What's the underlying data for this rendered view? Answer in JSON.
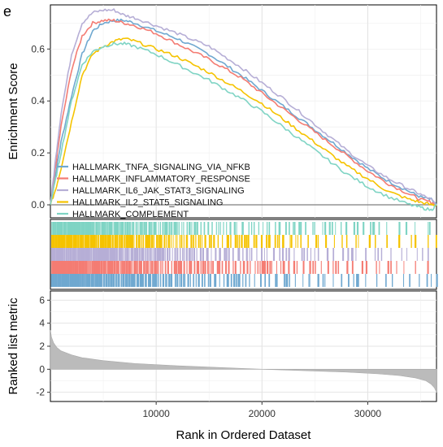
{
  "panel_label": "e",
  "chart_data": {
    "type": "line",
    "x_total": 36500,
    "xlabel": "Rank in Ordered Dataset",
    "xticks": [
      10000,
      20000,
      30000
    ],
    "xtick_labels": [
      "10000",
      "20000",
      "30000"
    ],
    "enrichment": {
      "ylabel": "Enrichment Score",
      "ylim": [
        -0.05,
        0.77
      ],
      "yticks": [
        0.0,
        0.2,
        0.4,
        0.6
      ],
      "ytick_labels": [
        "0.0",
        "0.2",
        "0.4",
        "0.6"
      ],
      "grid": true,
      "legend_position": "lower-left",
      "series": [
        {
          "name": "HALLMARK_TNFA_SIGNALING_VIA_NFKB",
          "color": "#6fa8d0",
          "x": [
            0,
            500,
            1000,
            2000,
            3000,
            4000,
            5000,
            6000,
            7000,
            8000,
            10000,
            12000,
            15000,
            18000,
            20000,
            22000,
            25000,
            28000,
            30000,
            32000,
            34000,
            35000,
            36000,
            36500
          ],
          "y": [
            0,
            0.12,
            0.24,
            0.42,
            0.58,
            0.67,
            0.7,
            0.71,
            0.71,
            0.7,
            0.67,
            0.64,
            0.58,
            0.5,
            0.44,
            0.38,
            0.29,
            0.2,
            0.14,
            0.09,
            0.05,
            0.03,
            0.02,
            0
          ]
        },
        {
          "name": "HALLMARK_INFLAMMATORY_RESPONSE",
          "color": "#f47c73",
          "x": [
            0,
            500,
            1000,
            2000,
            3000,
            4000,
            5000,
            6000,
            7000,
            8000,
            10000,
            12000,
            15000,
            18000,
            20000,
            22000,
            25000,
            28000,
            30000,
            32000,
            34000,
            35000,
            36000,
            36500
          ],
          "y": [
            0,
            0.15,
            0.3,
            0.52,
            0.65,
            0.7,
            0.71,
            0.71,
            0.7,
            0.69,
            0.66,
            0.62,
            0.56,
            0.49,
            0.43,
            0.37,
            0.28,
            0.19,
            0.13,
            0.08,
            0.04,
            0.02,
            0.01,
            0
          ]
        },
        {
          "name": "HALLMARK_IL6_JAK_STAT3_SIGNALING",
          "color": "#b6aed6",
          "x": [
            0,
            500,
            1000,
            2000,
            3000,
            4000,
            5000,
            6000,
            7000,
            8000,
            10000,
            12000,
            15000,
            18000,
            20000,
            22000,
            25000,
            28000,
            30000,
            32000,
            34000,
            35000,
            36000,
            36500
          ],
          "y": [
            0,
            0.18,
            0.35,
            0.58,
            0.7,
            0.74,
            0.75,
            0.75,
            0.73,
            0.72,
            0.69,
            0.66,
            0.61,
            0.53,
            0.47,
            0.41,
            0.31,
            0.21,
            0.15,
            0.1,
            0.06,
            0.04,
            0.02,
            0
          ]
        },
        {
          "name": "HALLMARK_IL2_STAT5_SIGNALING",
          "color": "#f5c300",
          "x": [
            0,
            500,
            1000,
            2000,
            3000,
            4000,
            5000,
            6000,
            7000,
            8000,
            10000,
            12000,
            15000,
            18000,
            20000,
            22000,
            25000,
            28000,
            30000,
            32000,
            34000,
            35000,
            36000,
            36500
          ],
          "y": [
            0,
            0.06,
            0.14,
            0.32,
            0.5,
            0.58,
            0.61,
            0.63,
            0.64,
            0.63,
            0.6,
            0.57,
            0.51,
            0.44,
            0.39,
            0.33,
            0.24,
            0.15,
            0.1,
            0.05,
            0.02,
            0.01,
            0.0,
            0
          ]
        },
        {
          "name": "HALLMARK_COMPLEMENT",
          "color": "#7fd4c4",
          "x": [
            0,
            500,
            1000,
            2000,
            3000,
            4000,
            5000,
            6000,
            7000,
            8000,
            10000,
            12000,
            15000,
            18000,
            20000,
            22000,
            25000,
            28000,
            30000,
            32000,
            34000,
            35000,
            36000,
            36500
          ],
          "y": [
            0,
            0.1,
            0.2,
            0.4,
            0.54,
            0.59,
            0.61,
            0.62,
            0.62,
            0.61,
            0.58,
            0.54,
            0.48,
            0.41,
            0.36,
            0.3,
            0.21,
            0.12,
            0.07,
            0.03,
            0.0,
            -0.01,
            -0.02,
            0
          ]
        }
      ]
    },
    "hit_tracks": {
      "order_top_to_bottom": [
        "HALLMARK_COMPLEMENT",
        "HALLMARK_IL2_STAT5_SIGNALING",
        "HALLMARK_IL6_JAK_STAT3_SIGNALING",
        "HALLMARK_INFLAMMATORY_RESPONSE",
        "HALLMARK_TNFA_SIGNALING_VIA_NFKB"
      ],
      "density_note": "hits dense at low ranks, sparse at high ranks"
    },
    "ranked_metric": {
      "ylabel": "Ranked list metric",
      "ylim": [
        -2.8,
        6.8
      ],
      "yticks": [
        -2,
        0,
        2,
        4,
        6
      ],
      "ytick_labels": [
        "-2",
        "0",
        "2",
        "4",
        "6"
      ],
      "fill_color": "#bbbbbb",
      "x": [
        0,
        100,
        300,
        600,
        1000,
        2000,
        3000,
        5000,
        8000,
        12000,
        16000,
        20000,
        24000,
        28000,
        31000,
        33000,
        34500,
        35500,
        36000,
        36300,
        36500
      ],
      "y": [
        3.4,
        2.8,
        2.3,
        1.9,
        1.6,
        1.25,
        1.0,
        0.75,
        0.5,
        0.3,
        0.15,
        0.0,
        -0.12,
        -0.25,
        -0.4,
        -0.55,
        -0.75,
        -1.0,
        -1.3,
        -1.6,
        -2.0
      ]
    }
  }
}
